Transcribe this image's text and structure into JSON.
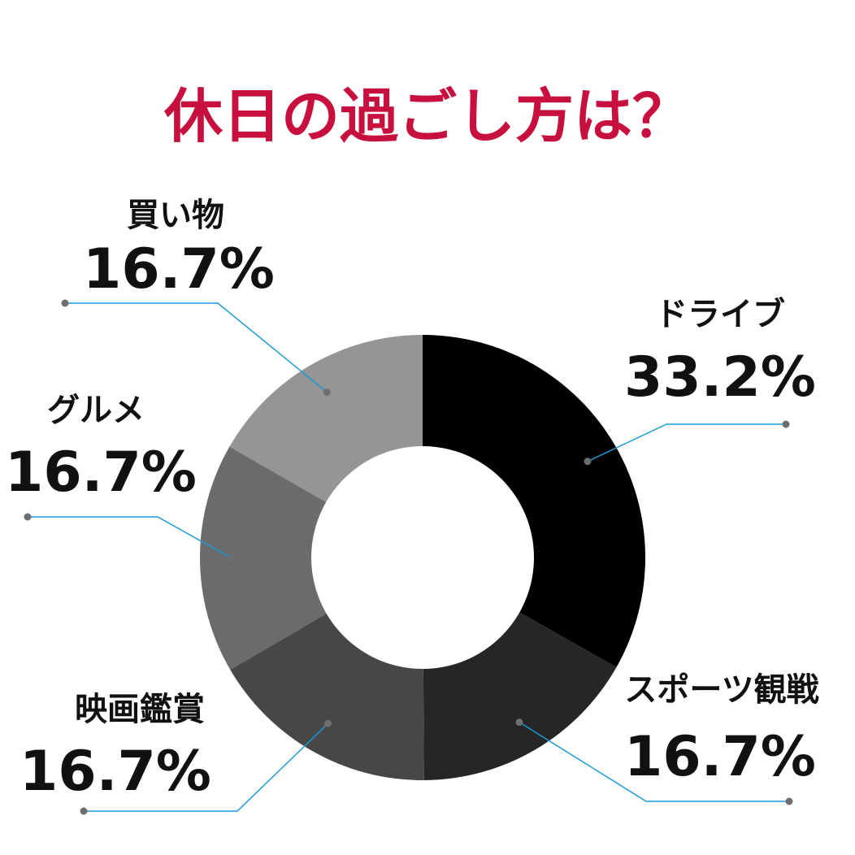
{
  "chart_data": {
    "type": "pie",
    "title": "休日の過ごし方は？",
    "categories": [
      "ドライブ",
      "スポーツ観戦",
      "映画鑑賞",
      "グルメ",
      "買い物"
    ],
    "values": [
      33.2,
      16.7,
      16.7,
      16.7,
      16.7
    ],
    "labels": [
      "33.2%",
      "16.7%",
      "16.7%",
      "16.7%",
      "16.7%"
    ],
    "donut": true,
    "start": "12 o'clock",
    "direction": "clockwise",
    "colors": [
      "#000000",
      "#262626",
      "#474747",
      "#6b6b6b",
      "#959595"
    ],
    "title_color": "#c8103e",
    "leader_line_color": "#1a9bd7",
    "leader_dot_color": "#6e6e6e"
  }
}
